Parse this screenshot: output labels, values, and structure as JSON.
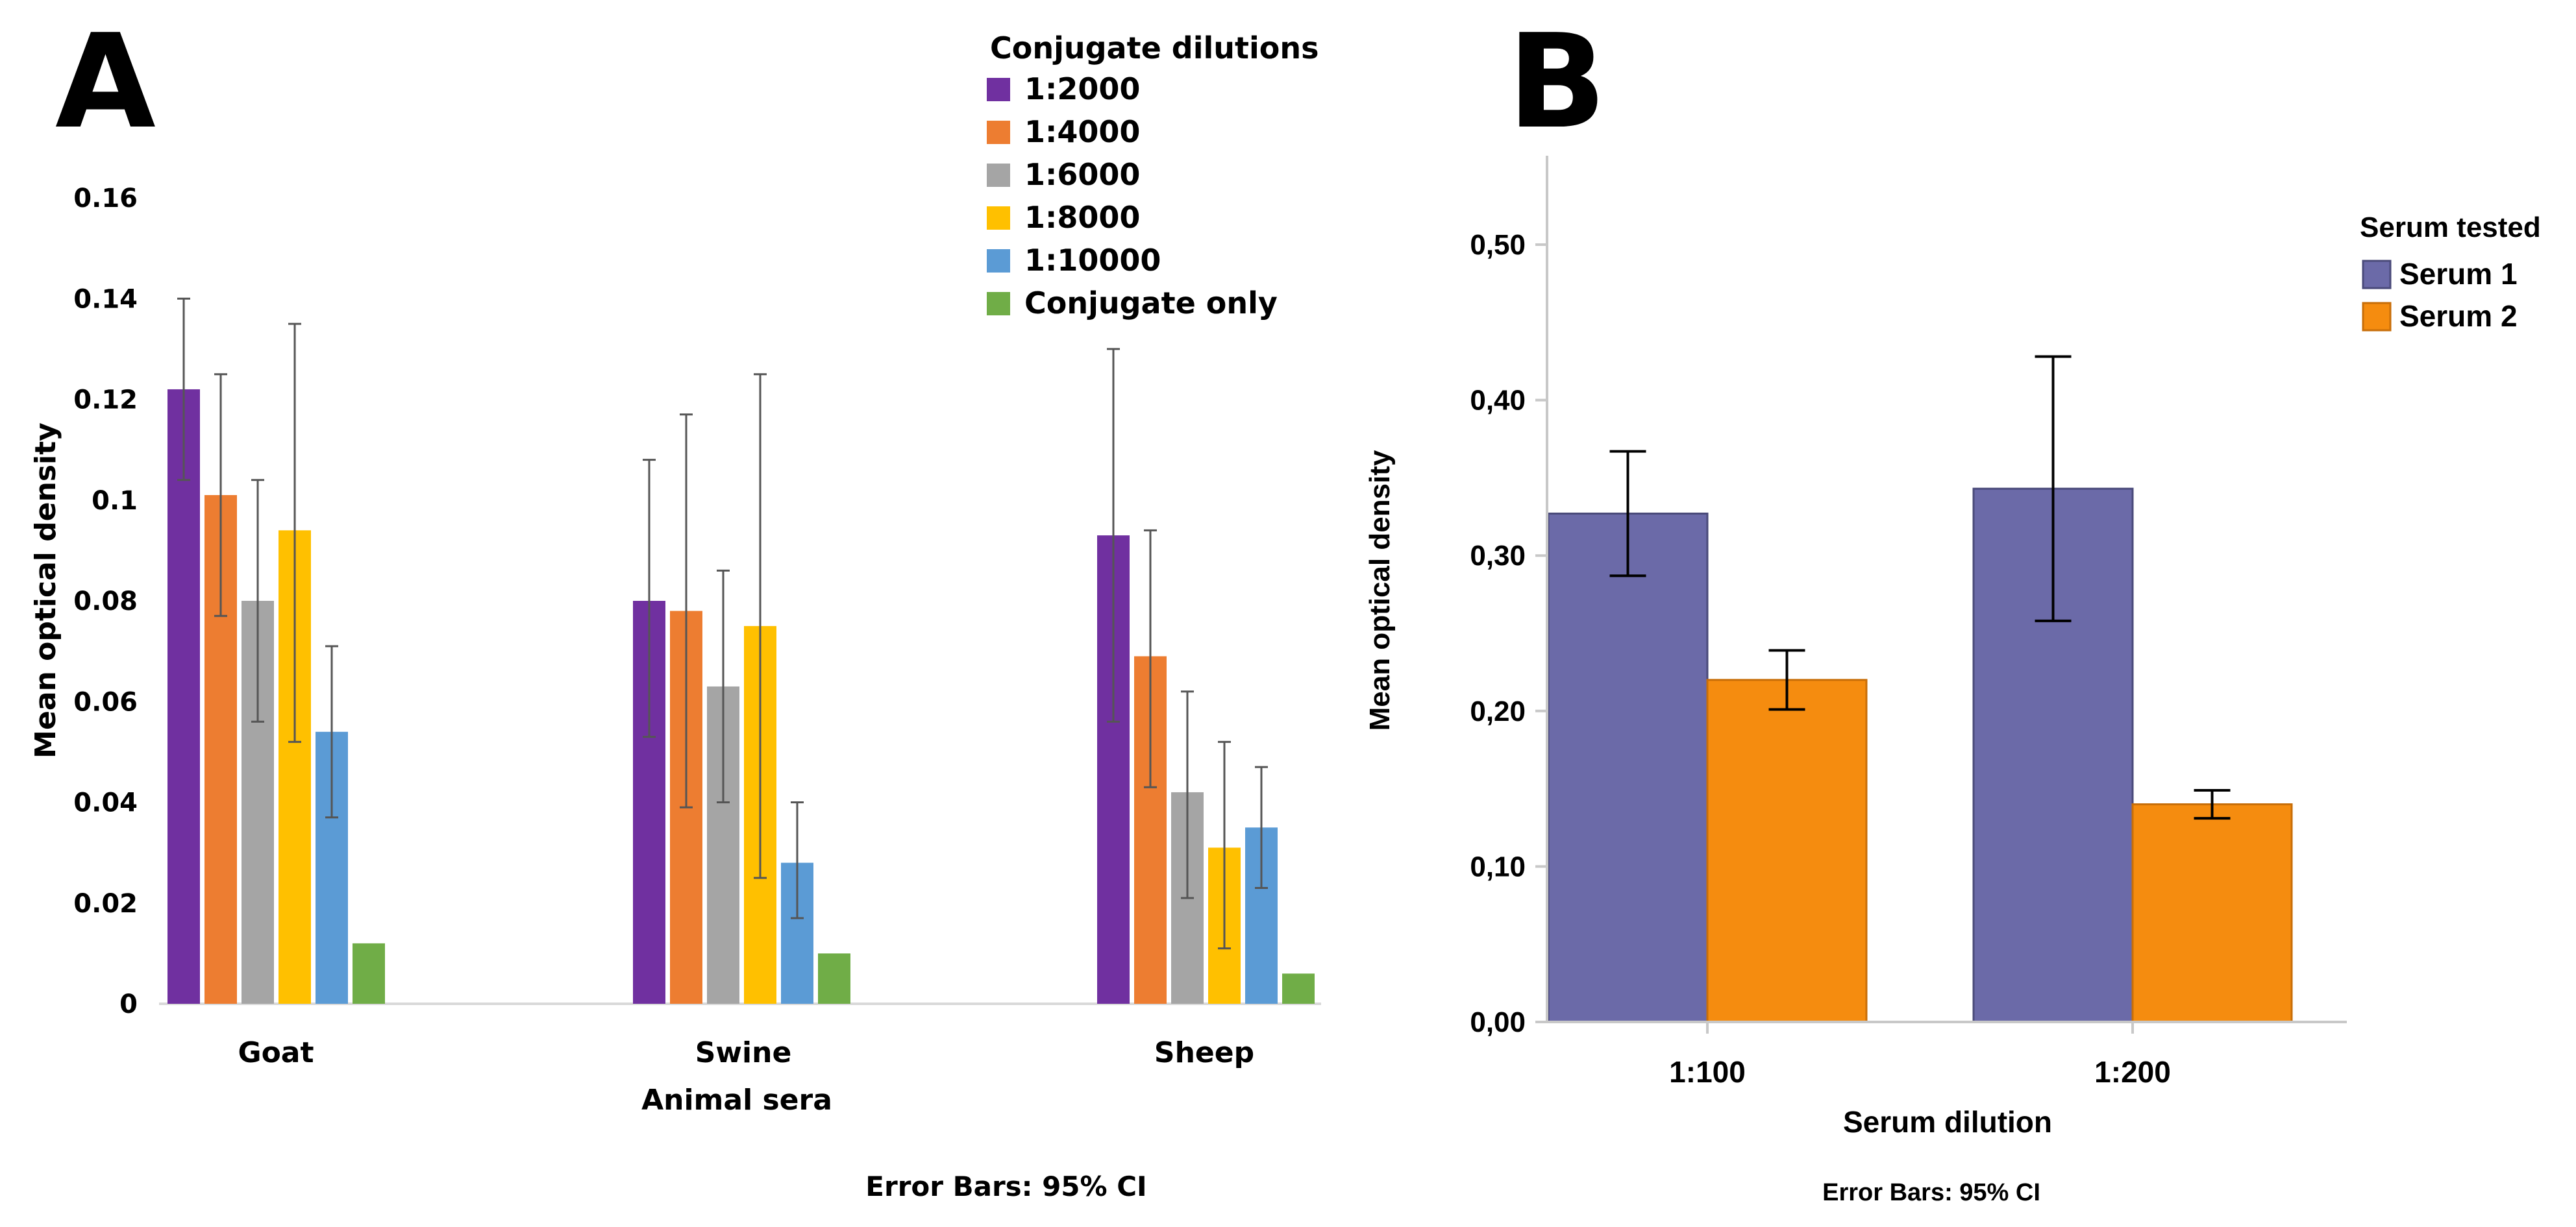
{
  "chart_data": [
    {
      "panel": "A",
      "type": "bar",
      "title": "",
      "xlabel": "Animal sera",
      "ylabel": "Mean optical density",
      "ylim": [
        0,
        0.16
      ],
      "yticks": [
        0,
        0.02,
        0.04,
        0.06,
        0.08,
        0.1,
        0.12,
        0.14,
        0.16
      ],
      "ytick_labels": [
        "0",
        "0.02",
        "0.04",
        "0.06",
        "0.08",
        "0.1",
        "0.12",
        "0.14",
        "0.16"
      ],
      "categories": [
        "Goat",
        "Swine",
        "Sheep"
      ],
      "legend_title": "Conjugate dilutions",
      "legend_position": "top-right",
      "series": [
        {
          "name": "1:2000",
          "color": "#7030a0",
          "values": [
            0.122,
            0.08,
            0.093
          ],
          "err_low": [
            0.104,
            0.053,
            0.056
          ],
          "err_high": [
            0.14,
            0.108,
            0.13
          ]
        },
        {
          "name": "1:4000",
          "color": "#ed7d31",
          "values": [
            0.101,
            0.078,
            0.069
          ],
          "err_low": [
            0.077,
            0.039,
            0.043
          ],
          "err_high": [
            0.125,
            0.117,
            0.094
          ]
        },
        {
          "name": "1:6000",
          "color": "#a5a5a5",
          "values": [
            0.08,
            0.063,
            0.042
          ],
          "err_low": [
            0.056,
            0.04,
            0.021
          ],
          "err_high": [
            0.104,
            0.086,
            0.062
          ]
        },
        {
          "name": "1:8000",
          "color": "#ffc000",
          "values": [
            0.094,
            0.075,
            0.031
          ],
          "err_low": [
            0.052,
            0.025,
            0.011
          ],
          "err_high": [
            0.135,
            0.125,
            0.052
          ]
        },
        {
          "name": "1:10000",
          "color": "#5b9bd5",
          "values": [
            0.054,
            0.028,
            0.035
          ],
          "err_low": [
            0.037,
            0.017,
            0.023
          ],
          "err_high": [
            0.071,
            0.04,
            0.047
          ]
        },
        {
          "name": "Conjugate only",
          "color": "#70ad47",
          "values": [
            0.012,
            0.01,
            0.006
          ]
        }
      ],
      "footnote": "Error Bars: 95% CI"
    },
    {
      "panel": "B",
      "type": "bar",
      "title": "",
      "xlabel": "Serum dilution",
      "ylabel": "Mean optical density",
      "ylim": [
        0,
        0.55
      ],
      "yticks": [
        0,
        0.1,
        0.2,
        0.3,
        0.4,
        0.5
      ],
      "ytick_labels": [
        "0,00",
        "0,10",
        "0,20",
        "0,30",
        "0,40",
        "0,50"
      ],
      "categories": [
        "1:100",
        "1:200"
      ],
      "legend_title": "Serum tested",
      "legend_position": "top-right",
      "series": [
        {
          "name": "Serum 1",
          "color": "#6b6aa8",
          "values": [
            0.327,
            0.343
          ],
          "err_low": [
            0.287,
            0.258
          ],
          "err_high": [
            0.367,
            0.428
          ]
        },
        {
          "name": "Serum 2",
          "color": "#f58c0f",
          "values": [
            0.22,
            0.14
          ],
          "err_low": [
            0.201,
            0.131
          ],
          "err_high": [
            0.239,
            0.149
          ]
        }
      ],
      "footnote": "Error Bars: 95% CI"
    }
  ],
  "panel_labels": [
    "A",
    "B"
  ]
}
